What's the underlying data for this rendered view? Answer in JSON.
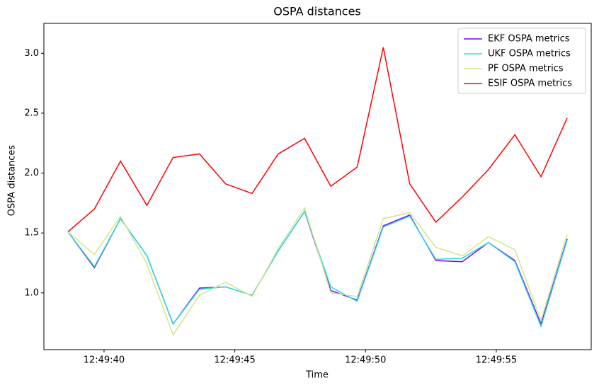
{
  "chart_data": {
    "type": "line",
    "title": "OSPA distances",
    "x_label": "Time",
    "y_label": "OSPA distances",
    "x": [
      38.62,
      39.63,
      40.63,
      41.64,
      42.64,
      43.65,
      44.65,
      45.66,
      46.66,
      47.67,
      48.67,
      49.68,
      50.68,
      51.69,
      52.69,
      53.7,
      54.7,
      55.71,
      56.71,
      57.71
    ],
    "series": [
      {
        "name": "EKF OSPA metrics",
        "color": "#8000ff",
        "values": [
          1.51,
          1.21,
          1.62,
          1.31,
          0.74,
          1.04,
          1.05,
          0.98,
          1.35,
          1.68,
          1.02,
          0.94,
          1.56,
          1.65,
          1.27,
          1.26,
          1.42,
          1.27,
          0.74,
          1.45
        ]
      },
      {
        "name": "UKF OSPA metrics",
        "color": "#2adddd",
        "values": [
          1.51,
          1.22,
          1.62,
          1.31,
          0.74,
          1.03,
          1.05,
          0.98,
          1.35,
          1.68,
          1.05,
          0.93,
          1.55,
          1.64,
          1.28,
          1.29,
          1.42,
          1.26,
          0.72,
          1.44
        ]
      },
      {
        "name": "PF OSPA metrics",
        "color": "#d4e68a",
        "values": [
          1.51,
          1.32,
          1.64,
          1.24,
          0.65,
          0.98,
          1.09,
          0.97,
          1.37,
          1.71,
          1.0,
          0.97,
          1.62,
          1.67,
          1.38,
          1.31,
          1.47,
          1.36,
          0.77,
          1.49
        ]
      },
      {
        "name": "ESIF OSPA metrics",
        "color": "#ff0000",
        "values": [
          1.51,
          1.7,
          2.1,
          1.73,
          2.13,
          2.16,
          1.91,
          1.83,
          2.16,
          2.29,
          1.89,
          2.05,
          3.05,
          1.91,
          1.59,
          1.8,
          2.03,
          2.32,
          1.97,
          2.46
        ]
      }
    ],
    "xlim": [
      37.7,
      58.63
    ],
    "xticks": [
      {
        "value": 40,
        "label": "12:49:40"
      },
      {
        "value": 45,
        "label": "12:49:45"
      },
      {
        "value": 50,
        "label": "12:49:50"
      },
      {
        "value": 55,
        "label": "12:49:55"
      }
    ],
    "ylim": [
      0.526,
      3.25
    ],
    "yticks": [
      {
        "value": 1,
        "label": "1.0"
      },
      {
        "value": 1.5,
        "label": "1.5"
      },
      {
        "value": 2,
        "label": "2.0"
      },
      {
        "value": 2.5,
        "label": "2.5"
      },
      {
        "value": 3,
        "label": "3.0"
      }
    ],
    "legend": "upper right",
    "grid": false
  }
}
